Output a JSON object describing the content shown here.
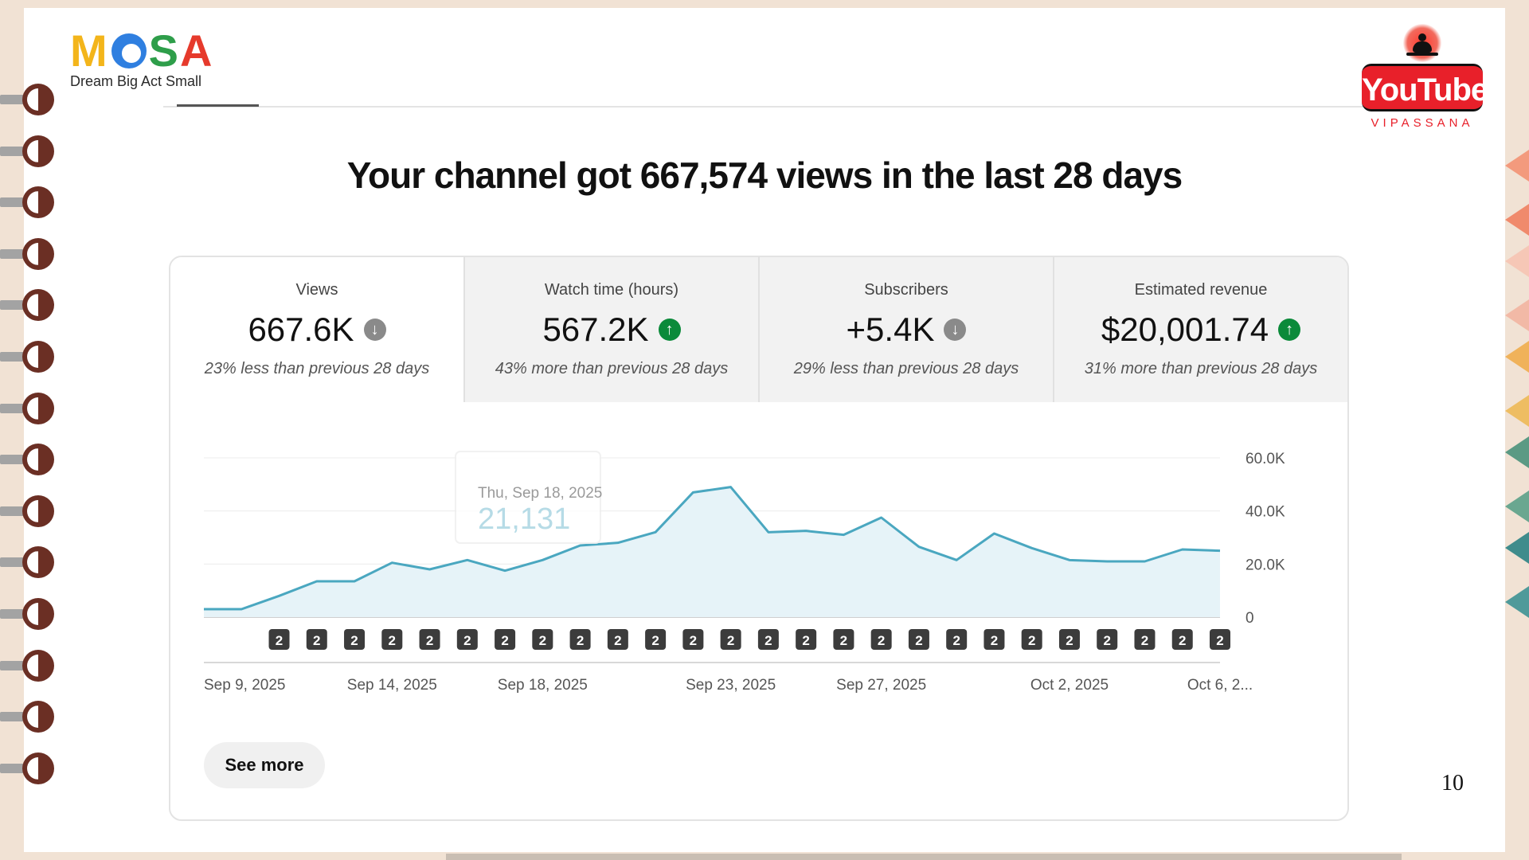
{
  "brand": {
    "logo_letters": [
      "M",
      "S",
      "A"
    ],
    "tagline": "Dream Big Act Small"
  },
  "partner": {
    "name": "YouTube",
    "subtitle": "VIPASSANA"
  },
  "headline": "Your channel got 667,574 views in the last 28 days",
  "metrics": [
    {
      "label": "Views",
      "value": "667.6K",
      "trend": "down",
      "note": "23% less than previous 28 days"
    },
    {
      "label": "Watch time (hours)",
      "value": "567.2K",
      "trend": "up",
      "note": "43% more than previous 28 days"
    },
    {
      "label": "Subscribers",
      "value": "+5.4K",
      "trend": "down",
      "note": "29% less than previous 28 days"
    },
    {
      "label": "Estimated revenue",
      "value": "$20,001.74",
      "trend": "up",
      "note": "31% more than previous 28 days"
    }
  ],
  "colors": {
    "line": "#4aa7c0",
    "fill": "#e6f3f8",
    "trend_up": "#0b8a3a",
    "trend_down": "#8a8a8a"
  },
  "chart_data": {
    "type": "area",
    "x": [
      "Sep 9",
      "Sep 10",
      "Sep 11",
      "Sep 12",
      "Sep 13",
      "Sep 14",
      "Sep 15",
      "Sep 16",
      "Sep 17",
      "Sep 18",
      "Sep 19",
      "Sep 20",
      "Sep 21",
      "Sep 22",
      "Sep 23",
      "Sep 24",
      "Sep 25",
      "Sep 26",
      "Sep 27",
      "Sep 28",
      "Sep 29",
      "Sep 30",
      "Oct 1",
      "Oct 2",
      "Oct 3",
      "Oct 4",
      "Oct 5",
      "Oct 6"
    ],
    "values": [
      3000,
      3000,
      8000,
      13500,
      13500,
      20500,
      18000,
      21500,
      17500,
      21500,
      27000,
      28000,
      32000,
      47000,
      49000,
      32000,
      32500,
      31000,
      37500,
      26500,
      21500,
      31500,
      26000,
      21500,
      21000,
      21000,
      25500,
      25000
    ],
    "ylim": [
      0,
      60000
    ],
    "y_ticks": [
      "0",
      "20.0K",
      "40.0K",
      "60.0K"
    ],
    "x_tick_labels": [
      {
        "index": 0,
        "label": "Sep 9, 2025"
      },
      {
        "index": 5,
        "label": "Sep 14, 2025"
      },
      {
        "index": 9,
        "label": "Sep 18, 2025"
      },
      {
        "index": 14,
        "label": "Sep 23, 2025"
      },
      {
        "index": 18,
        "label": "Sep 27, 2025"
      },
      {
        "index": 23,
        "label": "Oct 2, 2025"
      },
      {
        "index": 27,
        "label": "Oct 6, 2..."
      }
    ],
    "markers": {
      "label": "2",
      "start_index": 2,
      "end_index": 27
    },
    "tooltip": {
      "date": "Thu, Sep 18, 2025",
      "value": "21,131"
    },
    "grid": true
  },
  "see_more_label": "See more",
  "page_number": "10"
}
